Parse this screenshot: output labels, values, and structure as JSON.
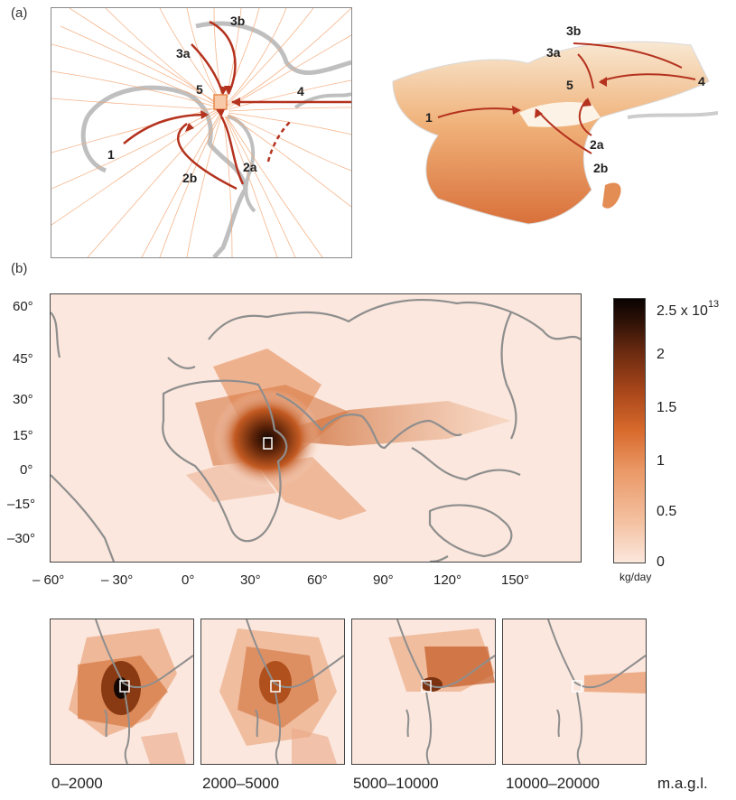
{
  "panel_a": {
    "label": "(a)",
    "arrows_left": [
      "3b",
      "3a",
      "5",
      "4",
      "1",
      "2b",
      "2a"
    ],
    "arrows_right": [
      "3b",
      "3a",
      "4",
      "5",
      "1",
      "2a",
      "2b"
    ]
  },
  "panel_b": {
    "label": "(b)",
    "y_ticks": [
      "60°",
      "45°",
      "30°",
      "15°",
      "0°",
      "–15°",
      "–30°"
    ],
    "x_ticks": [
      "– 60°",
      "– 30°",
      "0°",
      "30°",
      "60°",
      "90°",
      "120°",
      "150°"
    ],
    "colorbar": {
      "max_mantissa": "2.5 x 10",
      "max_exponent": "13",
      "ticks": [
        "2",
        "1.5",
        "1",
        "0.5",
        "0"
      ],
      "unit": "kg/day"
    }
  },
  "altitude_panels": {
    "ranges": [
      "0–2000",
      "2000–5000",
      "5000–10000",
      "10000–20000"
    ],
    "unit": "m.a.g.l."
  },
  "colors": {
    "low": "#fbe7dd",
    "mid": "#e07a3e",
    "high": "#1a0a05",
    "coast": "#8e8e8e",
    "arrow": "#b4321e"
  }
}
